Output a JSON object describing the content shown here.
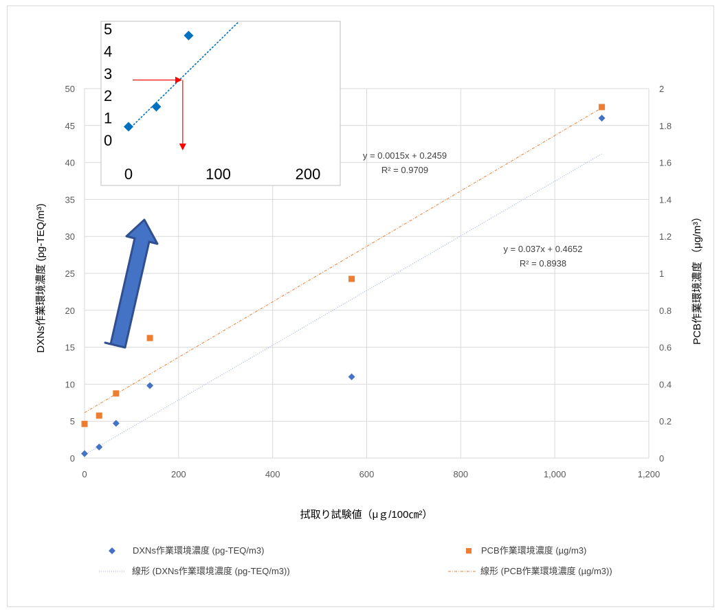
{
  "chart_data": [
    {
      "type": "scatter",
      "xlabel": "拭取り試験値（μｇ/100㎝²）",
      "ylabel_left": "DXNs作業環境濃度 (pg-TEQ/m³)",
      "ylabel_right": "PCB作業環境濃度 （μg/m³）",
      "xlim": [
        0,
        1200
      ],
      "ylim_left": [
        0,
        50
      ],
      "ylim_right": [
        0,
        2
      ],
      "x_ticks": [
        "0",
        "200",
        "400",
        "600",
        "800",
        "1,000",
        "1,200"
      ],
      "y_left_ticks": [
        "0",
        "5",
        "10",
        "15",
        "20",
        "25",
        "30",
        "35",
        "40",
        "45",
        "50"
      ],
      "y_right_ticks": [
        "0",
        "0.2",
        "0.4",
        "0.6",
        "0.8",
        "1",
        "1.2",
        "1.4",
        "1.6",
        "1.8",
        "2"
      ],
      "grid": true,
      "legend_position": "bottom",
      "series": [
        {
          "name": "DXNs作業環境濃度 (pg-TEQ/m3)",
          "axis": "left",
          "marker": "diamond",
          "color": "#4472c4",
          "points": [
            [
              0,
              0.6
            ],
            [
              31,
              1.5
            ],
            [
              67,
              4.7
            ],
            [
              139,
              9.8
            ],
            [
              568,
              11.0
            ],
            [
              1100,
              46.0
            ]
          ]
        },
        {
          "name": "PCB作業環境濃度 (µg/m3)",
          "axis": "right",
          "marker": "square",
          "color": "#ed7d31",
          "points": [
            [
              0,
              0.185
            ],
            [
              31,
              0.23
            ],
            [
              67,
              0.35
            ],
            [
              139,
              0.65
            ],
            [
              568,
              0.97
            ],
            [
              1100,
              1.9
            ]
          ]
        }
      ],
      "trendlines": [
        {
          "name": "線形 (DXNs作業環境濃度 (pg-TEQ/m3))",
          "axis": "left",
          "slope": 0.037,
          "intercept": 0.4652,
          "color": "#8faadc",
          "equation": "y = 0.037x + 0.4652",
          "r2": "R² = 0.8938"
        },
        {
          "name": "線形 (PCB作業環境濃度 (µg/m3))",
          "axis": "right",
          "slope": 0.0015,
          "intercept": 0.2459,
          "color": "#ed7d31",
          "equation": "y = 0.0015x + 0.2459",
          "r2": "R² = 0.9709"
        }
      ]
    },
    {
      "type": "scatter",
      "role": "inset",
      "xlim": [
        0,
        200
      ],
      "ylim": [
        0,
        5
      ],
      "x_ticks": [
        "0",
        "100",
        "200"
      ],
      "y_ticks": [
        "0",
        "1",
        "2",
        "3",
        "4",
        "5"
      ],
      "series": [
        {
          "marker": "diamond",
          "color": "#0070c0",
          "points": [
            [
              0,
              0.6
            ],
            [
              31,
              1.5
            ],
            [
              67,
              4.7
            ]
          ]
        }
      ],
      "trendline": {
        "slope": 0.037,
        "intercept": 0.4652,
        "color": "#0070c0"
      },
      "annotation": {
        "type": "red-arrow-lookup",
        "y_value": 2.7,
        "color": "#ff0000"
      }
    }
  ]
}
